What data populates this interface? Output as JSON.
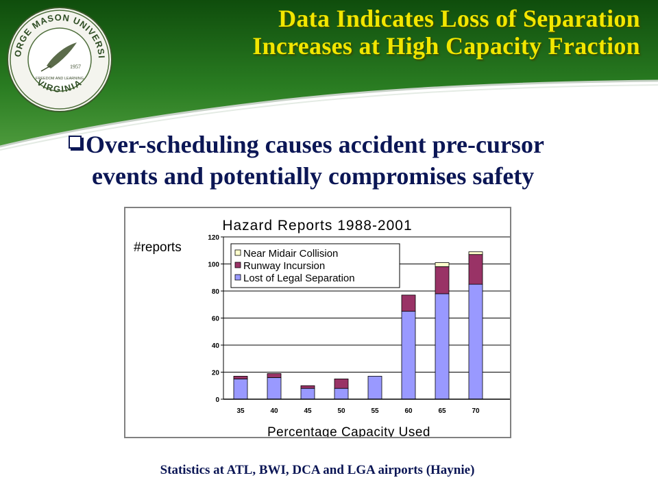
{
  "header": {
    "title_line_1": "Data Indicates Loss of Separation",
    "title_line_2": "Increases at High Capacity Fraction",
    "seal": {
      "top_text": "GEORGE MASON UNIVERSITY",
      "bottom_text": "VIRGINIA",
      "motto": "FREEDOM AND LEARNING",
      "year": "1957"
    },
    "colors": {
      "band_green": "#1e6b1a",
      "title_yellow": "#f2e600"
    }
  },
  "bullet": {
    "line_1": "Over-scheduling causes accident pre-cursor",
    "line_2": "events and potentially compromises safety"
  },
  "footer": {
    "caption": "Statistics at ATL, BWI, DCA and LGA airports (Haynie)"
  },
  "chart_data": {
    "type": "bar",
    "stacked": true,
    "title": "Hazard Reports 1988-2001",
    "xlabel": "Percentage Capacity Used",
    "ylabel": "#reports",
    "categories": [
      "35",
      "40",
      "45",
      "50",
      "55",
      "60",
      "65",
      "70"
    ],
    "ylim": [
      0,
      120
    ],
    "yticks": [
      0,
      20,
      40,
      60,
      80,
      100,
      120
    ],
    "grid": true,
    "legend_position": "top-left",
    "series": [
      {
        "name": "Lost of Legal Separation",
        "color": "#9999ff",
        "values": [
          15,
          16,
          8,
          8,
          17,
          65,
          78,
          85
        ]
      },
      {
        "name": "Runway Incursion",
        "color": "#993366",
        "values": [
          2,
          3,
          2,
          7,
          0,
          12,
          20,
          22
        ]
      },
      {
        "name": "Near Midair Collision",
        "color": "#ffffcc",
        "values": [
          0,
          0,
          0,
          0,
          0,
          0,
          3,
          2
        ]
      }
    ],
    "legend_order": [
      "Near Midair Collision",
      "Runway Incursion",
      "Lost of Legal Separation"
    ]
  }
}
